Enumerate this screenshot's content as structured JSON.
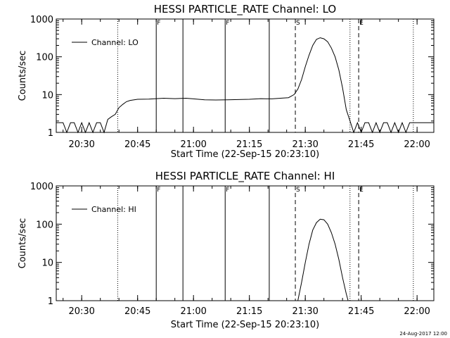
{
  "footer": {
    "timestamp": "24-Aug-2017 12:00"
  },
  "chart_data": [
    {
      "type": "line",
      "title": "HESSI PARTICLE_RATE Channel: LO",
      "xlabel": "Start Time (22-Sep-15 20:23:10)",
      "ylabel": "Counts/sec",
      "yscale": "log",
      "ylim": [
        1,
        1000
      ],
      "xlim": [
        "20:23:10",
        "22:04:30"
      ],
      "xticks": [
        "20:30",
        "20:45",
        "21:00",
        "21:15",
        "21:30",
        "21:45",
        "22:00"
      ],
      "yticks": [
        "1",
        "10",
        "100",
        "1000"
      ],
      "legend": {
        "position": "top-left",
        "entries": [
          "Channel: LO"
        ]
      },
      "markers": [
        {
          "label": "",
          "time": "20:39:40",
          "style": "dotted"
        },
        {
          "label": "F",
          "time": "20:50:00",
          "style": "solid"
        },
        {
          "label": "",
          "time": "20:57:10",
          "style": "solid"
        },
        {
          "label": "F",
          "time": "21:08:30",
          "style": "solid"
        },
        {
          "label": "",
          "time": "21:20:20",
          "style": "solid"
        },
        {
          "label": "S",
          "time": "21:27:20",
          "style": "dashed"
        },
        {
          "label": "",
          "time": "21:42:00",
          "style": "dotted"
        },
        {
          "label": "E",
          "time": "21:44:20",
          "style": "dashed"
        },
        {
          "label": "",
          "time": "21:59:00",
          "style": "dotted"
        }
      ],
      "series": [
        {
          "name": "Channel: LO",
          "points": [
            [
              "20:23:10",
              1.8
            ],
            [
              "20:25:00",
              1.8
            ],
            [
              "20:26:00",
              1
            ],
            [
              "20:27:00",
              1.8
            ],
            [
              "20:28:00",
              1.8
            ],
            [
              "20:29:00",
              1
            ],
            [
              "20:30:00",
              1.8
            ],
            [
              "20:31:00",
              1
            ],
            [
              "20:32:00",
              1.8
            ],
            [
              "20:33:00",
              1
            ],
            [
              "20:34:00",
              1.8
            ],
            [
              "20:35:00",
              1.8
            ],
            [
              "20:36:00",
              1
            ],
            [
              "20:37:00",
              2.2
            ],
            [
              "20:38:00",
              2.6
            ],
            [
              "20:39:00",
              3
            ],
            [
              "20:40:00",
              4.5
            ],
            [
              "20:41:00",
              5.5
            ],
            [
              "20:42:00",
              6.5
            ],
            [
              "20:43:00",
              7
            ],
            [
              "20:45:00",
              7.5
            ],
            [
              "20:48:00",
              7.6
            ],
            [
              "20:52:00",
              8
            ],
            [
              "20:55:00",
              7.8
            ],
            [
              "20:58:00",
              8
            ],
            [
              "21:00:00",
              7.7
            ],
            [
              "21:03:00",
              7.3
            ],
            [
              "21:06:00",
              7.2
            ],
            [
              "21:09:00",
              7.3
            ],
            [
              "21:12:00",
              7.4
            ],
            [
              "21:15:00",
              7.5
            ],
            [
              "21:18:00",
              7.8
            ],
            [
              "21:21:00",
              7.7
            ],
            [
              "21:24:00",
              8.1
            ],
            [
              "21:25:30",
              8.3
            ],
            [
              "21:27:00",
              10
            ],
            [
              "21:28:00",
              14
            ],
            [
              "21:29:00",
              25
            ],
            [
              "21:30:00",
              55
            ],
            [
              "21:31:00",
              110
            ],
            [
              "21:32:00",
              200
            ],
            [
              "21:33:00",
              290
            ],
            [
              "21:34:00",
              320
            ],
            [
              "21:35:00",
              300
            ],
            [
              "21:36:00",
              250
            ],
            [
              "21:37:00",
              170
            ],
            [
              "21:38:00",
              100
            ],
            [
              "21:39:00",
              45
            ],
            [
              "21:40:00",
              15
            ],
            [
              "21:41:00",
              4
            ],
            [
              "21:42:00",
              2
            ],
            [
              "21:43:00",
              1
            ],
            [
              "21:44:00",
              1.8
            ],
            [
              "21:45:00",
              1
            ],
            [
              "21:46:00",
              1.8
            ],
            [
              "21:47:00",
              1.8
            ],
            [
              "21:48:00",
              1
            ],
            [
              "21:49:00",
              1.8
            ],
            [
              "21:50:00",
              1
            ],
            [
              "21:51:00",
              1.8
            ],
            [
              "21:52:00",
              1.8
            ],
            [
              "21:53:00",
              1
            ],
            [
              "21:54:00",
              1.8
            ],
            [
              "21:55:00",
              1
            ],
            [
              "21:56:00",
              1.8
            ],
            [
              "21:57:00",
              1
            ],
            [
              "21:58:00",
              1.8
            ],
            [
              "22:00:00",
              1.8
            ],
            [
              "22:04:30",
              1.8
            ]
          ]
        }
      ]
    },
    {
      "type": "line",
      "title": "HESSI PARTICLE_RATE Channel: HI",
      "xlabel": "Start Time (22-Sep-15 20:23:10)",
      "ylabel": "Counts/sec",
      "yscale": "log",
      "ylim": [
        1,
        1000
      ],
      "xlim": [
        "20:23:10",
        "22:04:30"
      ],
      "xticks": [
        "20:30",
        "20:45",
        "21:00",
        "21:15",
        "21:30",
        "21:45",
        "22:00"
      ],
      "yticks": [
        "1",
        "10",
        "100",
        "1000"
      ],
      "legend": {
        "position": "top-left",
        "entries": [
          "Channel: HI"
        ]
      },
      "markers": [
        {
          "label": "",
          "time": "20:39:40",
          "style": "dotted"
        },
        {
          "label": "F",
          "time": "20:50:00",
          "style": "solid"
        },
        {
          "label": "",
          "time": "20:57:10",
          "style": "solid"
        },
        {
          "label": "F",
          "time": "21:08:30",
          "style": "solid"
        },
        {
          "label": "",
          "time": "21:20:20",
          "style": "solid"
        },
        {
          "label": "S",
          "time": "21:27:20",
          "style": "dashed"
        },
        {
          "label": "",
          "time": "21:42:00",
          "style": "dotted"
        },
        {
          "label": "E",
          "time": "21:44:20",
          "style": "dashed"
        },
        {
          "label": "",
          "time": "21:59:00",
          "style": "dotted"
        }
      ],
      "series": [
        {
          "name": "Channel: HI",
          "points": [
            [
              "21:28:00",
              1
            ],
            [
              "21:29:00",
              3
            ],
            [
              "21:30:00",
              10
            ],
            [
              "21:31:00",
              30
            ],
            [
              "21:32:00",
              70
            ],
            [
              "21:33:00",
              110
            ],
            [
              "21:34:00",
              135
            ],
            [
              "21:35:00",
              130
            ],
            [
              "21:36:00",
              100
            ],
            [
              "21:37:00",
              60
            ],
            [
              "21:38:00",
              30
            ],
            [
              "21:39:00",
              12
            ],
            [
              "21:40:00",
              4
            ],
            [
              "21:41:00",
              1.5
            ],
            [
              "21:41:30",
              1
            ]
          ]
        }
      ]
    }
  ]
}
